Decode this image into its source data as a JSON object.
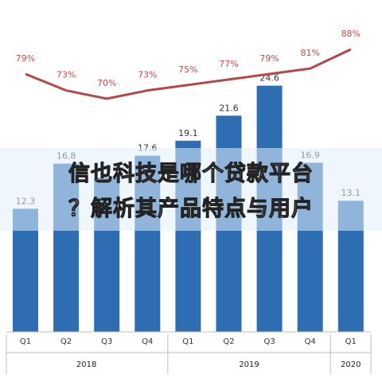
{
  "chart_data": {
    "type": "bar",
    "categories": [
      "Q1",
      "Q2",
      "Q3",
      "Q4",
      "Q1",
      "Q2",
      "Q3",
      "Q4",
      "Q1"
    ],
    "years": [
      {
        "label": "2018",
        "quarters": 4
      },
      {
        "label": "2019",
        "quarters": 4
      },
      {
        "label": "2020",
        "quarters": 1
      }
    ],
    "series": [
      {
        "values": [
          12.3,
          16.8,
          15.4,
          17.6,
          19.1,
          21.6,
          24.6,
          16.9,
          13.1
        ],
        "kind": "bar",
        "color": "#2f6db3"
      },
      {
        "values": [
          79,
          73,
          70,
          73,
          75,
          77,
          79,
          81,
          88
        ],
        "labels": [
          "79%",
          "73%",
          "70%",
          "73%",
          "75%",
          "77%",
          "79%",
          "81%",
          "88%"
        ],
        "kind": "line",
        "color": "#b5474b"
      }
    ],
    "value_labels": [
      "12.3",
      "16.8",
      "",
      "17.6",
      "19.1",
      "21.6",
      "24.6",
      "16.9",
      "13.1"
    ],
    "ylim": [
      0,
      26
    ],
    "line_ylim": [
      60,
      95
    ],
    "grid": false,
    "legend": "none"
  },
  "watermark": {
    "line1": "信也科技是哪个贷款平台",
    "line2": "？解析其产品特点与用户"
  }
}
